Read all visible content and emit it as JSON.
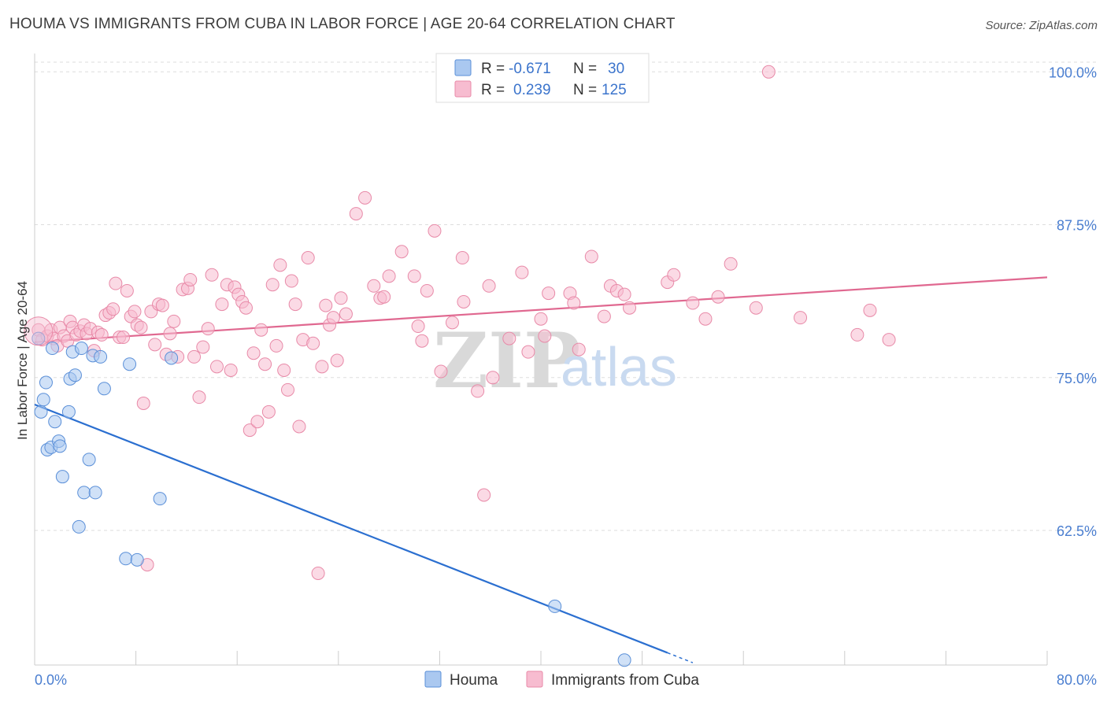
{
  "title": "HOUMA VS IMMIGRANTS FROM CUBA IN LABOR FORCE | AGE 20-64 CORRELATION CHART",
  "source": "Source: ZipAtlas.com",
  "watermark": {
    "zip": "ZIP",
    "atlas": "atlas"
  },
  "colors": {
    "houma_fill": "#aac8f0",
    "houma_stroke": "#5a8fd8",
    "houma_line": "#2b6fd0",
    "cuba_fill": "#f7bcd0",
    "cuba_stroke": "#e88aa8",
    "cuba_line": "#e06890",
    "grid": "#dddddd",
    "axis_label": "#4a7ed0"
  },
  "legend": {
    "rows": [
      {
        "r_label": "R =",
        "r_value": "-0.671",
        "n_label": "N =",
        "n_value": "30"
      },
      {
        "r_label": "R =",
        "r_value": "0.239",
        "n_label": "N =",
        "n_value": "125"
      }
    ]
  },
  "bottom_legend": {
    "houma": "Houma",
    "cuba": "Immigrants from Cuba"
  },
  "chart_data": {
    "type": "scatter",
    "title": "HOUMA VS IMMIGRANTS FROM CUBA IN LABOR FORCE | AGE 20-64 CORRELATION CHART",
    "ylabel": "In Labor Force | Age 20-64",
    "xlim": [
      0,
      80
    ],
    "ylim": [
      51.5,
      101.5
    ],
    "x_tick_labels": [
      "0.0%",
      "80.0%"
    ],
    "y_ticks": [
      {
        "value": 100.0,
        "label": "100.0%"
      },
      {
        "value": 87.5,
        "label": "87.5%"
      },
      {
        "value": 75.0,
        "label": "75.0%"
      },
      {
        "value": 62.5,
        "label": "62.5%"
      }
    ],
    "grid": true,
    "legend_position": "top-center",
    "series": [
      {
        "name": "Houma",
        "r": -0.671,
        "n": 30,
        "trend": {
          "x0": 0.0,
          "y0": 72.8,
          "x1": 50.0,
          "y1": 52.5,
          "dashed_to_x": 52.0
        },
        "points": [
          [
            0.3,
            78.2
          ],
          [
            0.5,
            72.2
          ],
          [
            0.7,
            73.2
          ],
          [
            0.9,
            74.6
          ],
          [
            1.0,
            69.1
          ],
          [
            1.3,
            69.3
          ],
          [
            1.4,
            77.4
          ],
          [
            1.6,
            71.4
          ],
          [
            1.9,
            69.8
          ],
          [
            2.0,
            69.4
          ],
          [
            2.2,
            66.9
          ],
          [
            2.7,
            72.2
          ],
          [
            2.8,
            74.9
          ],
          [
            3.0,
            77.1
          ],
          [
            3.2,
            75.2
          ],
          [
            3.5,
            62.8
          ],
          [
            3.7,
            77.4
          ],
          [
            3.9,
            65.6
          ],
          [
            4.3,
            68.3
          ],
          [
            4.6,
            76.8
          ],
          [
            4.8,
            65.6
          ],
          [
            5.2,
            76.7
          ],
          [
            5.5,
            74.1
          ],
          [
            7.2,
            60.2
          ],
          [
            7.5,
            76.1
          ],
          [
            8.1,
            60.1
          ],
          [
            9.9,
            65.1
          ],
          [
            10.8,
            76.6
          ],
          [
            41.1,
            56.3
          ],
          [
            46.6,
            51.9
          ]
        ]
      },
      {
        "name": "Immigrants from Cuba",
        "r": 0.239,
        "n": 125,
        "trend": {
          "x0": 0.0,
          "y0": 77.9,
          "x1": 80.0,
          "y1": 83.2
        },
        "points": [
          [
            0.3,
            78.9
          ],
          [
            0.6,
            78.1
          ],
          [
            1.0,
            78.4
          ],
          [
            1.3,
            78.9
          ],
          [
            1.5,
            78.2
          ],
          [
            1.8,
            77.6
          ],
          [
            2.0,
            79.1
          ],
          [
            2.3,
            78.4
          ],
          [
            2.6,
            78.0
          ],
          [
            2.8,
            79.6
          ],
          [
            3.0,
            79.1
          ],
          [
            3.3,
            78.5
          ],
          [
            3.6,
            78.8
          ],
          [
            3.9,
            79.3
          ],
          [
            4.1,
            78.6
          ],
          [
            4.4,
            79.0
          ],
          [
            4.7,
            77.2
          ],
          [
            5.0,
            78.7
          ],
          [
            5.3,
            78.5
          ],
          [
            5.6,
            80.1
          ],
          [
            5.9,
            80.3
          ],
          [
            6.2,
            80.6
          ],
          [
            6.4,
            82.7
          ],
          [
            6.7,
            78.3
          ],
          [
            7.0,
            78.3
          ],
          [
            7.3,
            82.1
          ],
          [
            7.6,
            80.0
          ],
          [
            7.9,
            80.4
          ],
          [
            8.1,
            79.3
          ],
          [
            8.4,
            79.1
          ],
          [
            8.6,
            72.9
          ],
          [
            8.9,
            59.7
          ],
          [
            9.2,
            80.4
          ],
          [
            9.5,
            77.7
          ],
          [
            9.8,
            81.0
          ],
          [
            10.1,
            80.9
          ],
          [
            10.4,
            76.9
          ],
          [
            10.7,
            78.6
          ],
          [
            11.0,
            79.6
          ],
          [
            11.3,
            76.7
          ],
          [
            11.7,
            82.2
          ],
          [
            12.1,
            82.3
          ],
          [
            12.3,
            83.0
          ],
          [
            12.6,
            76.7
          ],
          [
            13.0,
            73.4
          ],
          [
            13.3,
            77.5
          ],
          [
            13.7,
            79.0
          ],
          [
            14.0,
            83.4
          ],
          [
            14.4,
            75.9
          ],
          [
            14.8,
            81.0
          ],
          [
            15.2,
            82.6
          ],
          [
            15.5,
            75.6
          ],
          [
            15.8,
            82.4
          ],
          [
            16.1,
            81.8
          ],
          [
            16.4,
            81.2
          ],
          [
            16.7,
            80.7
          ],
          [
            17.0,
            70.7
          ],
          [
            17.3,
            77.0
          ],
          [
            17.6,
            71.4
          ],
          [
            17.9,
            78.9
          ],
          [
            18.2,
            76.1
          ],
          [
            18.5,
            72.2
          ],
          [
            18.8,
            82.6
          ],
          [
            19.1,
            77.6
          ],
          [
            19.4,
            84.2
          ],
          [
            19.7,
            75.6
          ],
          [
            20.0,
            74.0
          ],
          [
            20.3,
            82.9
          ],
          [
            20.6,
            81.0
          ],
          [
            20.9,
            71.0
          ],
          [
            21.2,
            78.1
          ],
          [
            21.6,
            84.8
          ],
          [
            22.0,
            77.8
          ],
          [
            22.4,
            59.0
          ],
          [
            22.7,
            75.9
          ],
          [
            23.0,
            80.9
          ],
          [
            23.3,
            79.3
          ],
          [
            23.6,
            79.9
          ],
          [
            23.9,
            76.4
          ],
          [
            24.2,
            81.5
          ],
          [
            24.6,
            80.2
          ],
          [
            25.4,
            88.4
          ],
          [
            26.1,
            89.7
          ],
          [
            26.8,
            82.5
          ],
          [
            27.3,
            81.5
          ],
          [
            27.6,
            81.6
          ],
          [
            28.0,
            83.3
          ],
          [
            29.0,
            85.3
          ],
          [
            30.0,
            83.3
          ],
          [
            30.3,
            79.2
          ],
          [
            30.6,
            78.0
          ],
          [
            31.0,
            82.1
          ],
          [
            31.6,
            87.0
          ],
          [
            32.1,
            75.5
          ],
          [
            33.0,
            79.5
          ],
          [
            33.8,
            84.8
          ],
          [
            33.9,
            81.2
          ],
          [
            35.0,
            73.9
          ],
          [
            35.5,
            65.4
          ],
          [
            35.9,
            82.5
          ],
          [
            36.2,
            75.0
          ],
          [
            37.5,
            78.2
          ],
          [
            38.5,
            83.6
          ],
          [
            39.0,
            77.1
          ],
          [
            40.0,
            79.8
          ],
          [
            40.3,
            78.4
          ],
          [
            40.6,
            81.9
          ],
          [
            42.3,
            81.9
          ],
          [
            42.6,
            81.1
          ],
          [
            43.0,
            77.3
          ],
          [
            44.0,
            84.9
          ],
          [
            45.0,
            80.0
          ],
          [
            45.5,
            82.5
          ],
          [
            46.0,
            82.1
          ],
          [
            46.6,
            81.8
          ],
          [
            47.0,
            80.7
          ],
          [
            50.0,
            82.8
          ],
          [
            50.5,
            83.4
          ],
          [
            52.0,
            81.1
          ],
          [
            53.0,
            79.8
          ],
          [
            54.0,
            81.6
          ],
          [
            55.0,
            84.3
          ],
          [
            57.0,
            80.7
          ],
          [
            58.0,
            100.0
          ],
          [
            60.5,
            79.9
          ],
          [
            65.0,
            78.5
          ],
          [
            66.0,
            80.5
          ],
          [
            67.5,
            78.1
          ]
        ]
      }
    ]
  }
}
